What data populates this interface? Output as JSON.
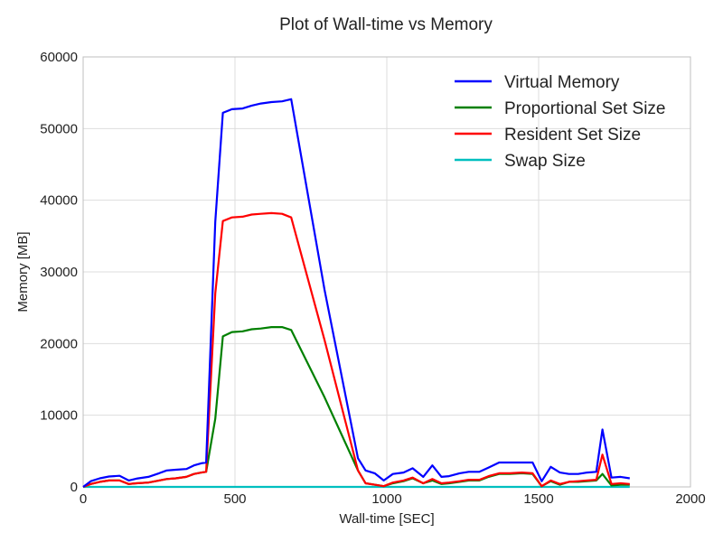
{
  "chart_data": {
    "type": "line",
    "title": "Plot of Wall-time vs Memory",
    "xlabel": "Wall-time [SEC]",
    "ylabel": "Memory [MB]",
    "xlim": [
      0,
      2000
    ],
    "ylim": [
      0,
      60000
    ],
    "xticks": [
      0,
      500,
      1000,
      1500,
      2000
    ],
    "yticks": [
      0,
      10000,
      20000,
      30000,
      40000,
      50000,
      60000
    ],
    "grid": true,
    "legend_position": "top-right",
    "series": [
      {
        "name": "Virtual Memory",
        "color": "#0000ff",
        "points": [
          [
            0,
            0
          ],
          [
            25,
            800
          ],
          [
            55,
            1200
          ],
          [
            85,
            1450
          ],
          [
            120,
            1550
          ],
          [
            150,
            900
          ],
          [
            175,
            1150
          ],
          [
            215,
            1400
          ],
          [
            250,
            1900
          ],
          [
            275,
            2300
          ],
          [
            305,
            2400
          ],
          [
            340,
            2500
          ],
          [
            365,
            3000
          ],
          [
            390,
            3300
          ],
          [
            405,
            3400
          ],
          [
            435,
            37000
          ],
          [
            460,
            52200
          ],
          [
            490,
            52700
          ],
          [
            525,
            52800
          ],
          [
            555,
            53200
          ],
          [
            585,
            53500
          ],
          [
            620,
            53700
          ],
          [
            655,
            53800
          ],
          [
            685,
            54100
          ],
          [
            795,
            27500
          ],
          [
            905,
            4000
          ],
          [
            930,
            2300
          ],
          [
            960,
            1900
          ],
          [
            990,
            900
          ],
          [
            1020,
            1800
          ],
          [
            1055,
            2000
          ],
          [
            1085,
            2600
          ],
          [
            1120,
            1400
          ],
          [
            1150,
            3000
          ],
          [
            1180,
            1400
          ],
          [
            1205,
            1500
          ],
          [
            1240,
            1900
          ],
          [
            1270,
            2100
          ],
          [
            1305,
            2100
          ],
          [
            1335,
            2700
          ],
          [
            1370,
            3400
          ],
          [
            1405,
            3400
          ],
          [
            1445,
            3400
          ],
          [
            1480,
            3400
          ],
          [
            1510,
            800
          ],
          [
            1540,
            2800
          ],
          [
            1570,
            2000
          ],
          [
            1600,
            1800
          ],
          [
            1630,
            1800
          ],
          [
            1660,
            2000
          ],
          [
            1690,
            2100
          ],
          [
            1710,
            8000
          ],
          [
            1740,
            1300
          ],
          [
            1770,
            1400
          ],
          [
            1800,
            1200
          ]
        ]
      },
      {
        "name": "Proportional Set Size",
        "color": "#008000",
        "points": [
          [
            0,
            0
          ],
          [
            25,
            400
          ],
          [
            55,
            700
          ],
          [
            85,
            900
          ],
          [
            120,
            900
          ],
          [
            150,
            400
          ],
          [
            175,
            500
          ],
          [
            215,
            600
          ],
          [
            250,
            900
          ],
          [
            275,
            1100
          ],
          [
            305,
            1200
          ],
          [
            340,
            1400
          ],
          [
            365,
            1800
          ],
          [
            390,
            2000
          ],
          [
            405,
            2100
          ],
          [
            435,
            9500
          ],
          [
            460,
            21000
          ],
          [
            490,
            21600
          ],
          [
            525,
            21700
          ],
          [
            555,
            22000
          ],
          [
            585,
            22100
          ],
          [
            620,
            22300
          ],
          [
            655,
            22300
          ],
          [
            685,
            21900
          ],
          [
            795,
            12500
          ],
          [
            905,
            2300
          ],
          [
            930,
            500
          ],
          [
            960,
            300
          ],
          [
            990,
            100
          ],
          [
            1020,
            500
          ],
          [
            1055,
            800
          ],
          [
            1085,
            1200
          ],
          [
            1120,
            500
          ],
          [
            1150,
            900
          ],
          [
            1180,
            400
          ],
          [
            1205,
            500
          ],
          [
            1240,
            700
          ],
          [
            1270,
            900
          ],
          [
            1305,
            900
          ],
          [
            1335,
            1400
          ],
          [
            1370,
            1800
          ],
          [
            1405,
            1800
          ],
          [
            1445,
            1900
          ],
          [
            1480,
            1800
          ],
          [
            1510,
            100
          ],
          [
            1540,
            800
          ],
          [
            1570,
            300
          ],
          [
            1600,
            700
          ],
          [
            1630,
            700
          ],
          [
            1660,
            800
          ],
          [
            1690,
            900
          ],
          [
            1710,
            1800
          ],
          [
            1740,
            200
          ],
          [
            1770,
            300
          ],
          [
            1800,
            300
          ]
        ]
      },
      {
        "name": "Resident Set Size",
        "color": "#ff0000",
        "points": [
          [
            0,
            0
          ],
          [
            25,
            400
          ],
          [
            55,
            700
          ],
          [
            85,
            900
          ],
          [
            120,
            900
          ],
          [
            150,
            400
          ],
          [
            175,
            500
          ],
          [
            215,
            600
          ],
          [
            250,
            900
          ],
          [
            275,
            1100
          ],
          [
            305,
            1200
          ],
          [
            340,
            1400
          ],
          [
            365,
            1800
          ],
          [
            390,
            2000
          ],
          [
            405,
            2100
          ],
          [
            435,
            27000
          ],
          [
            460,
            37100
          ],
          [
            490,
            37600
          ],
          [
            525,
            37700
          ],
          [
            555,
            38000
          ],
          [
            585,
            38100
          ],
          [
            620,
            38200
          ],
          [
            655,
            38100
          ],
          [
            685,
            37600
          ],
          [
            795,
            20500
          ],
          [
            905,
            2300
          ],
          [
            930,
            500
          ],
          [
            960,
            300
          ],
          [
            990,
            100
          ],
          [
            1020,
            600
          ],
          [
            1055,
            900
          ],
          [
            1085,
            1300
          ],
          [
            1120,
            500
          ],
          [
            1150,
            1100
          ],
          [
            1180,
            500
          ],
          [
            1205,
            600
          ],
          [
            1240,
            800
          ],
          [
            1270,
            1000
          ],
          [
            1305,
            1000
          ],
          [
            1335,
            1500
          ],
          [
            1370,
            1900
          ],
          [
            1405,
            1900
          ],
          [
            1445,
            2000
          ],
          [
            1480,
            1900
          ],
          [
            1510,
            100
          ],
          [
            1540,
            900
          ],
          [
            1570,
            400
          ],
          [
            1600,
            700
          ],
          [
            1630,
            800
          ],
          [
            1660,
            900
          ],
          [
            1690,
            1000
          ],
          [
            1710,
            4500
          ],
          [
            1740,
            400
          ],
          [
            1770,
            500
          ],
          [
            1800,
            400
          ]
        ]
      },
      {
        "name": "Swap Size",
        "color": "#00bfbf",
        "points": [
          [
            0,
            0
          ],
          [
            1800,
            0
          ]
        ]
      }
    ]
  }
}
